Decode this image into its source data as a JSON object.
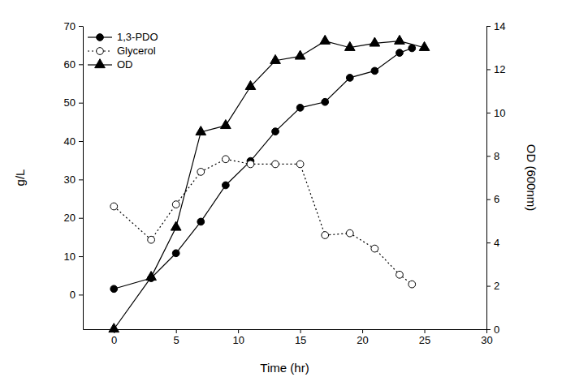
{
  "chart_data": {
    "type": "line",
    "x_label": "Time (hr)",
    "y_label": "g/L",
    "y2_label": "OD (600nm)",
    "xlim": [
      -2.5,
      30
    ],
    "xticks": [
      0,
      5,
      10,
      15,
      20,
      25,
      30
    ],
    "ylim": [
      -9,
      70
    ],
    "yticks": [
      0,
      10,
      20,
      30,
      40,
      50,
      60,
      70
    ],
    "y2lim": [
      0,
      14
    ],
    "y2ticks": [
      0,
      2,
      4,
      6,
      8,
      10,
      12,
      14
    ],
    "grid": false,
    "legend": "upper left",
    "series": [
      {
        "name": "1,3-PDO",
        "color": "#000000",
        "marker": "circle",
        "line_style": "solid",
        "x": [
          0,
          3,
          5,
          7,
          9,
          11,
          13,
          15,
          17,
          19,
          21,
          23,
          24
        ],
        "values": [
          1.5,
          4.3,
          10.8,
          19,
          28.5,
          34.8,
          42.5,
          48.7,
          50.2,
          56.5,
          58.3,
          63,
          64.2
        ]
      },
      {
        "name": "Glycerol",
        "color": "#000000",
        "marker": "circle-open",
        "line_style": "dotted",
        "x": [
          0,
          3,
          5,
          7,
          9,
          11,
          13,
          15,
          17,
          19,
          21,
          23,
          24
        ],
        "values": [
          23,
          14.3,
          23.5,
          32,
          35.3,
          34,
          34,
          34,
          15.5,
          16,
          12,
          5.2,
          2.7
        ]
      },
      {
        "name": "OD",
        "color": "#000000",
        "marker": "triangle",
        "line_style": "solid",
        "axis": "y2",
        "x": [
          0,
          3,
          5,
          7,
          9,
          11,
          13,
          15,
          17,
          19,
          21,
          23,
          25
        ],
        "values": [
          0,
          2.4,
          4.7,
          9.1,
          9.4,
          11.2,
          12.4,
          12.6,
          13.3,
          13.0,
          13.2,
          13.3,
          13.0
        ]
      }
    ]
  }
}
